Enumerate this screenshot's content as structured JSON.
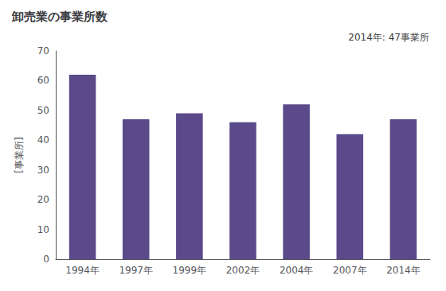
{
  "chart_data": {
    "type": "bar",
    "title": "卸売業の事業所数",
    "ylabel": "[事業所]",
    "annotation": "2014年: 47事業所",
    "categories": [
      "1994年",
      "1997年",
      "1999年",
      "2002年",
      "2004年",
      "2007年",
      "2014年"
    ],
    "values": [
      62,
      47,
      49,
      46,
      52,
      42,
      47
    ],
    "color": "#5b4a8a",
    "ylim": [
      0,
      70
    ],
    "yticks": [
      0,
      10,
      20,
      30,
      40,
      50,
      60,
      70
    ],
    "grid": false
  }
}
